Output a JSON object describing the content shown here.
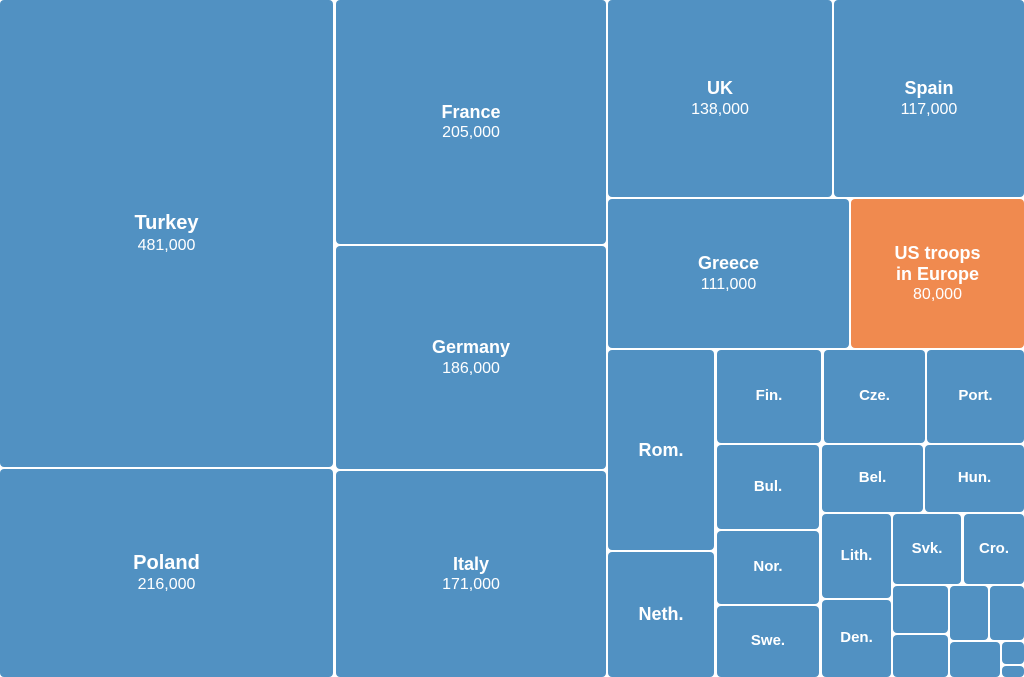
{
  "chart_data": {
    "type": "treemap",
    "colors": {
      "default": "#5191c2",
      "highlight": "#f08a4f"
    },
    "items": [
      {
        "id": "turkey",
        "name": "Turkey",
        "value": 481000,
        "value_label": "481,000"
      },
      {
        "id": "poland",
        "name": "Poland",
        "value": 216000,
        "value_label": "216,000"
      },
      {
        "id": "france",
        "name": "France",
        "value": 205000,
        "value_label": "205,000"
      },
      {
        "id": "germany",
        "name": "Germany",
        "value": 186000,
        "value_label": "186,000"
      },
      {
        "id": "italy",
        "name": "Italy",
        "value": 171000,
        "value_label": "171,000"
      },
      {
        "id": "uk",
        "name": "UK",
        "value": 138000,
        "value_label": "138,000"
      },
      {
        "id": "spain",
        "name": "Spain",
        "value": 117000,
        "value_label": "117,000"
      },
      {
        "id": "greece",
        "name": "Greece",
        "value": 111000,
        "value_label": "111,000"
      },
      {
        "id": "us",
        "name": "US troops\nin Europe",
        "value": 80000,
        "value_label": "80,000",
        "highlight": true
      },
      {
        "id": "rom",
        "name": "Rom."
      },
      {
        "id": "neth",
        "name": "Neth."
      },
      {
        "id": "fin",
        "name": "Fin."
      },
      {
        "id": "cze",
        "name": "Cze."
      },
      {
        "id": "port",
        "name": "Port."
      },
      {
        "id": "bul",
        "name": "Bul."
      },
      {
        "id": "bel",
        "name": "Bel."
      },
      {
        "id": "hun",
        "name": "Hun."
      },
      {
        "id": "nor",
        "name": "Nor."
      },
      {
        "id": "lith",
        "name": "Lith."
      },
      {
        "id": "svk",
        "name": "Svk."
      },
      {
        "id": "cro",
        "name": "Cro."
      },
      {
        "id": "swe",
        "name": "Swe."
      },
      {
        "id": "den",
        "name": "Den."
      },
      {
        "id": "s1",
        "name": ""
      },
      {
        "id": "s2",
        "name": ""
      },
      {
        "id": "s3",
        "name": ""
      },
      {
        "id": "s4",
        "name": ""
      },
      {
        "id": "s5",
        "name": ""
      },
      {
        "id": "s6",
        "name": ""
      },
      {
        "id": "s7",
        "name": ""
      }
    ]
  }
}
